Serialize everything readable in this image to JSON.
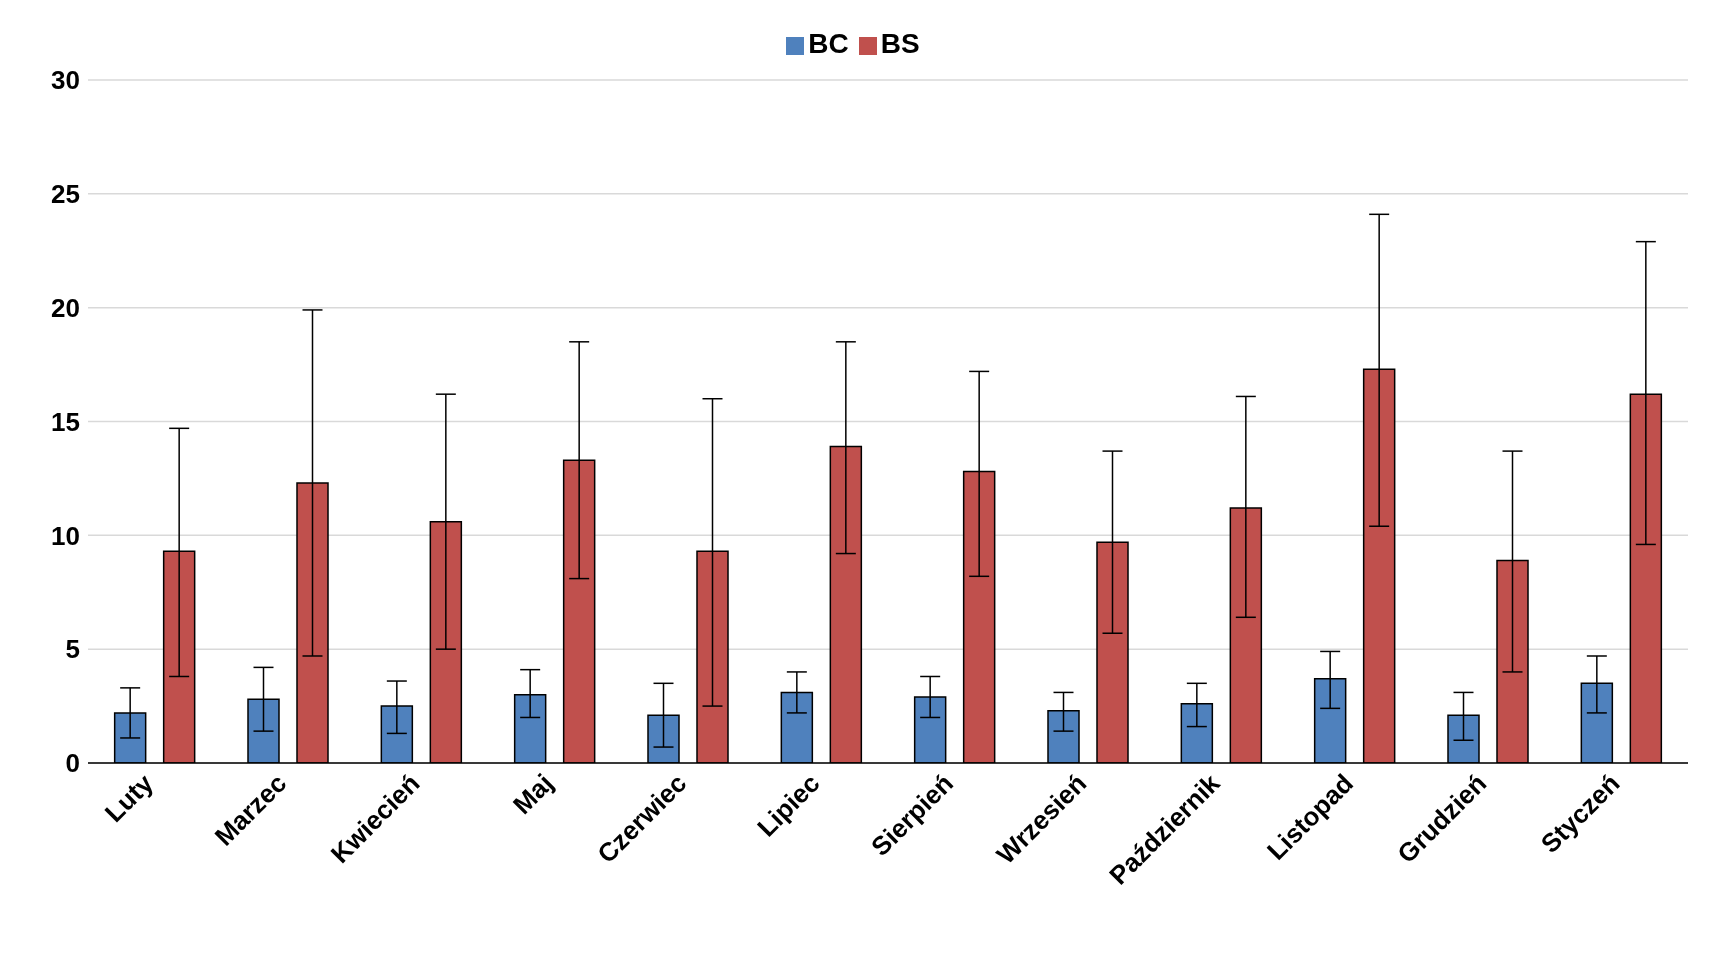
{
  "chart_data": {
    "type": "bar",
    "categories": [
      "Luty",
      "Marzec",
      "Kwiecień",
      "Maj",
      "Czerwiec",
      "Lipiec",
      "Sierpień",
      "Wrzesień",
      "Październik",
      "Listopad",
      "Grudzień",
      "Styczeń"
    ],
    "series": [
      {
        "name": "BC",
        "color": "#4f81bd",
        "values": [
          2.2,
          2.8,
          2.5,
          3.0,
          2.1,
          3.1,
          2.9,
          2.3,
          2.6,
          3.7,
          2.1,
          3.5
        ],
        "errors": [
          [
            1.1,
            3.3
          ],
          [
            1.4,
            4.2
          ],
          [
            1.3,
            3.6
          ],
          [
            2.0,
            4.1
          ],
          [
            0.7,
            3.5
          ],
          [
            2.2,
            4.0
          ],
          [
            2.0,
            3.8
          ],
          [
            1.4,
            3.1
          ],
          [
            1.6,
            3.5
          ],
          [
            2.4,
            4.9
          ],
          [
            1.0,
            3.1
          ],
          [
            2.2,
            4.7
          ]
        ]
      },
      {
        "name": "BS",
        "color": "#c0504d",
        "values": [
          9.3,
          12.3,
          10.6,
          13.3,
          9.3,
          13.9,
          12.8,
          9.7,
          11.2,
          17.3,
          8.9,
          16.2
        ],
        "errors": [
          [
            3.8,
            14.7
          ],
          [
            4.7,
            19.9
          ],
          [
            5.0,
            16.2
          ],
          [
            8.1,
            18.5
          ],
          [
            2.5,
            16.0
          ],
          [
            9.2,
            18.5
          ],
          [
            8.2,
            17.2
          ],
          [
            5.7,
            13.7
          ],
          [
            6.4,
            16.1
          ],
          [
            10.4,
            24.1
          ],
          [
            4.0,
            13.7
          ],
          [
            9.6,
            22.9
          ]
        ]
      }
    ],
    "ylim": [
      0,
      30
    ],
    "yticks": [
      0,
      5,
      10,
      15,
      20,
      25,
      30
    ],
    "grid": "y",
    "legend": "top"
  }
}
